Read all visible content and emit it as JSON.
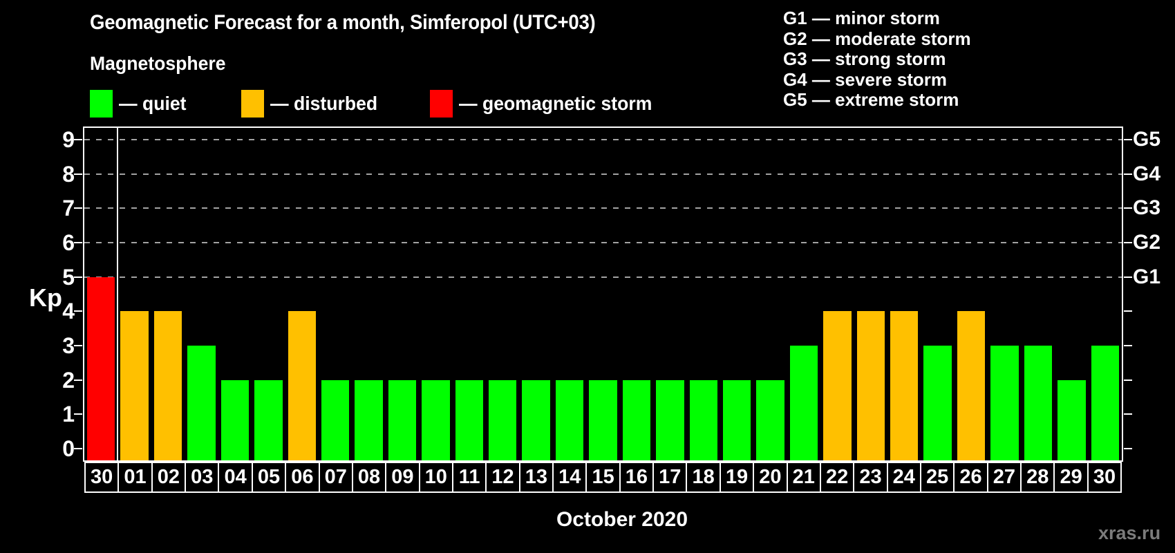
{
  "page": {
    "background": "#000000",
    "watermark": "xras.ru"
  },
  "header": {
    "title": "Geomagnetic Forecast for a month, Simferopol (UTC+03)",
    "section_label": "Magnetosphere"
  },
  "legend": {
    "items": [
      {
        "key": "quiet",
        "label": "— quiet",
        "color": "#00ff00"
      },
      {
        "key": "disturbed",
        "label": "— disturbed",
        "color": "#ffc000"
      },
      {
        "key": "storm",
        "label": "— geomagnetic storm",
        "color": "#ff0000"
      }
    ]
  },
  "storm_scale_legend": {
    "items": [
      "G1 — minor storm",
      "G2 — moderate storm",
      "G3 — strong storm",
      "G4 — severe storm",
      "G5 — extreme storm"
    ]
  },
  "chart_data": {
    "type": "bar",
    "title": "Geomagnetic Forecast for a month, Simferopol (UTC+03)",
    "subtitle": "Magnetosphere",
    "xlabel": "October 2020",
    "ylabel": "Kp",
    "ylim": [
      0,
      9
    ],
    "y_ticks": [
      0,
      1,
      2,
      3,
      4,
      5,
      6,
      7,
      8,
      9
    ],
    "gridlines_at": [
      5,
      6,
      7,
      8,
      9
    ],
    "grid_style": "dashed horizontal gray lines only at Kp 5–9",
    "right_axis_labels": [
      {
        "value": 5,
        "label": "G1"
      },
      {
        "value": 6,
        "label": "G2"
      },
      {
        "value": 7,
        "label": "G3"
      },
      {
        "value": 8,
        "label": "G4"
      },
      {
        "value": 9,
        "label": "G5"
      }
    ],
    "categories": [
      "30",
      "01",
      "02",
      "03",
      "04",
      "05",
      "06",
      "07",
      "08",
      "09",
      "10",
      "11",
      "12",
      "13",
      "14",
      "15",
      "16",
      "17",
      "18",
      "19",
      "20",
      "21",
      "22",
      "23",
      "24",
      "25",
      "26",
      "27",
      "28",
      "29",
      "30"
    ],
    "values": [
      5,
      4,
      4,
      3,
      2,
      2,
      4,
      2,
      2,
      2,
      2,
      2,
      2,
      2,
      2,
      2,
      2,
      2,
      2,
      2,
      2,
      3,
      4,
      4,
      4,
      3,
      4,
      3,
      3,
      2,
      3
    ],
    "statuses": [
      "storm",
      "disturbed",
      "disturbed",
      "quiet",
      "quiet",
      "quiet",
      "disturbed",
      "quiet",
      "quiet",
      "quiet",
      "quiet",
      "quiet",
      "quiet",
      "quiet",
      "quiet",
      "quiet",
      "quiet",
      "quiet",
      "quiet",
      "quiet",
      "quiet",
      "quiet",
      "disturbed",
      "disturbed",
      "disturbed",
      "quiet",
      "disturbed",
      "quiet",
      "quiet",
      "quiet",
      "quiet"
    ],
    "colors": {
      "quiet": "#00ff00",
      "disturbed": "#ffc000",
      "storm": "#ff0000"
    },
    "separator_after_index": 0,
    "legend_position": "top-left",
    "axis_color": "#ffffff",
    "background_color": "#000000"
  }
}
